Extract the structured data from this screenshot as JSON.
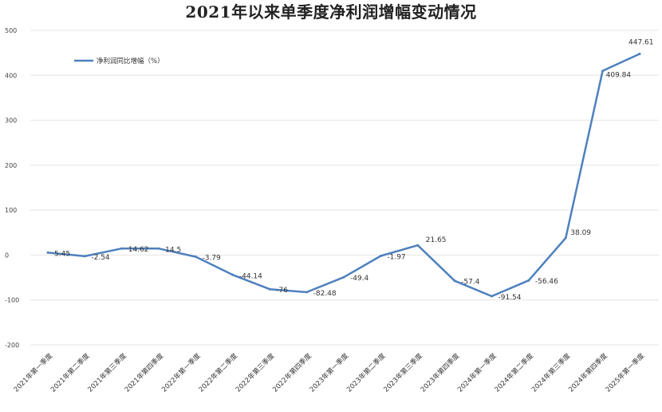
{
  "chart_data": {
    "type": "line",
    "title": "2021年以来单季度净利润增幅变动情况",
    "xlabel": "",
    "ylabel": "",
    "ylim": [
      -200,
      500
    ],
    "yticks": [
      -200,
      -100,
      0,
      100,
      200,
      300,
      400,
      500
    ],
    "grid": true,
    "legend_position": "top-left",
    "categories": [
      "2021年第一季度",
      "2021年第二季度",
      "2021年第三季度",
      "2021年第四季度",
      "2022年第一季度",
      "2022年第二季度",
      "2022年第三季度",
      "2022年第四季度",
      "2023年第一季度",
      "2023年第二季度",
      "2023年第三季度",
      "2023年第四季度",
      "2024年第一季度",
      "2024年第二季度",
      "2024年第三季度",
      "2024年第四季度",
      "2025年第一季度"
    ],
    "series": [
      {
        "name": "净利润同比增幅（%）",
        "color": "#4f81bd",
        "values": [
          5.45,
          -2.54,
          14.62,
          14.5,
          -3.79,
          -44.14,
          -76,
          -82.48,
          -49.4,
          -1.97,
          21.65,
          -57.4,
          -91.54,
          -56.46,
          38.09,
          409.84,
          447.61
        ],
        "labels": [
          "5.45",
          "-2.54",
          "14.62",
          "14.5",
          "-3.79",
          "-44.14",
          "-76",
          "-82.48",
          "-49.4",
          "-1.97",
          "21.65",
          "-57.4",
          "-91.54",
          "-56.46",
          "38.09",
          "409.84",
          "447.61"
        ]
      }
    ]
  }
}
